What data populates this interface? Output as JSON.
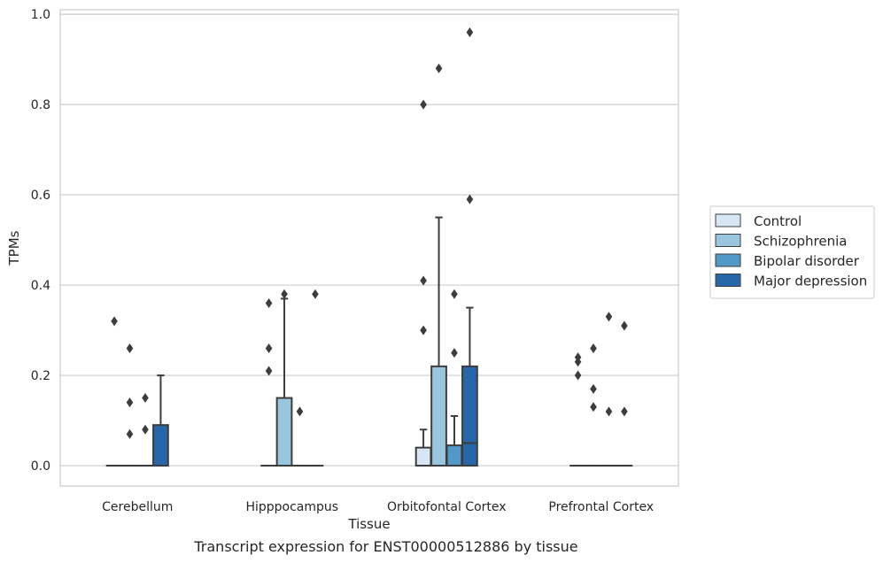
{
  "chart_data": {
    "type": "box",
    "xlabel": "Tissue",
    "ylabel": "TPMs",
    "caption": "Transcript expression for ENST00000512886 by tissue",
    "ylim": [
      -0.045,
      1.01
    ],
    "yticks": [
      "0.0",
      "0.2",
      "0.4",
      "0.6",
      "0.8",
      "1.0"
    ],
    "grid": "horizontal",
    "legend_position": "right",
    "categories": [
      "Cerebellum",
      "Hipppocampus",
      "Orbitofontal Cortex",
      "Prefrontal Cortex"
    ],
    "series": [
      {
        "name": "Control",
        "color": "#d6e6f4",
        "boxes": [
          {
            "q1": 0,
            "median": 0,
            "q3": 0,
            "whisker_low": 0,
            "whisker_high": 0,
            "outliers": [
              0.32
            ]
          },
          {
            "q1": 0,
            "median": 0,
            "q3": 0,
            "whisker_low": 0,
            "whisker_high": 0,
            "outliers": [
              0.36,
              0.26,
              0.21
            ]
          },
          {
            "q1": 0,
            "median": 0,
            "q3": 0.04,
            "whisker_low": 0,
            "whisker_high": 0.08,
            "outliers": [
              0.8,
              0.41,
              0.3
            ]
          },
          {
            "q1": 0,
            "median": 0,
            "q3": 0,
            "whisker_low": 0,
            "whisker_high": 0,
            "outliers": [
              0.24,
              0.23,
              0.2
            ]
          }
        ]
      },
      {
        "name": "Schizophrenia",
        "color": "#9ac5df",
        "boxes": [
          {
            "q1": 0,
            "median": 0,
            "q3": 0,
            "whisker_low": 0,
            "whisker_high": 0,
            "outliers": [
              0.26,
              0.14,
              0.07
            ]
          },
          {
            "q1": 0,
            "median": 0,
            "q3": 0.15,
            "whisker_low": 0,
            "whisker_high": 0.37,
            "outliers": [
              0.38
            ]
          },
          {
            "q1": 0,
            "median": 0,
            "q3": 0.22,
            "whisker_low": 0,
            "whisker_high": 0.55,
            "outliers": [
              0.88
            ]
          },
          {
            "q1": 0,
            "median": 0,
            "q3": 0,
            "whisker_low": 0,
            "whisker_high": 0,
            "outliers": [
              0.26,
              0.17,
              0.13
            ]
          }
        ]
      },
      {
        "name": "Bipolar disorder",
        "color": "#5199c7",
        "boxes": [
          {
            "q1": 0,
            "median": 0,
            "q3": 0,
            "whisker_low": 0,
            "whisker_high": 0,
            "outliers": [
              0.15,
              0.08
            ]
          },
          {
            "q1": 0,
            "median": 0,
            "q3": 0,
            "whisker_low": 0,
            "whisker_high": 0,
            "outliers": [
              0.12
            ]
          },
          {
            "q1": 0,
            "median": 0,
            "q3": 0.045,
            "whisker_low": 0,
            "whisker_high": 0.11,
            "outliers": [
              0.38,
              0.25
            ]
          },
          {
            "q1": 0,
            "median": 0,
            "q3": 0,
            "whisker_low": 0,
            "whisker_high": 0,
            "outliers": [
              0.33,
              0.12
            ]
          }
        ]
      },
      {
        "name": "Major depression",
        "color": "#2766a8",
        "boxes": [
          {
            "q1": 0,
            "median": 0,
            "q3": 0.09,
            "whisker_low": 0,
            "whisker_high": 0.2,
            "outliers": []
          },
          {
            "q1": 0,
            "median": 0,
            "q3": 0,
            "whisker_low": 0,
            "whisker_high": 0,
            "outliers": [
              0.38
            ]
          },
          {
            "q1": 0,
            "median": 0.05,
            "q3": 0.22,
            "whisker_low": 0,
            "whisker_high": 0.35,
            "outliers": [
              0.96,
              0.59
            ]
          },
          {
            "q1": 0,
            "median": 0,
            "q3": 0,
            "whisker_low": 0,
            "whisker_high": 0,
            "outliers": [
              0.31,
              0.12
            ]
          }
        ]
      }
    ]
  }
}
